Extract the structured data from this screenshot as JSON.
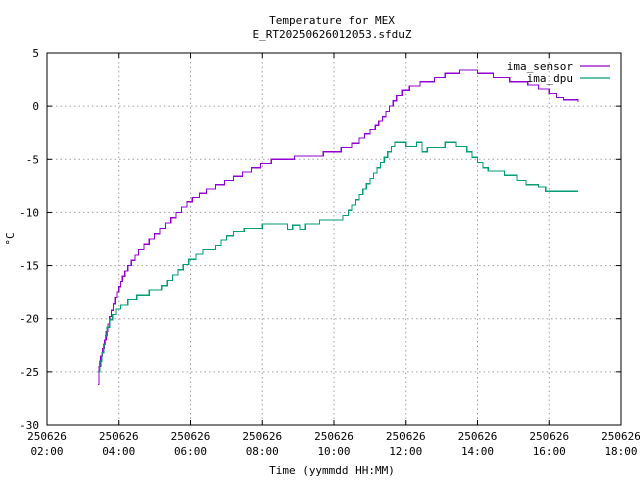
{
  "chart_data": {
    "type": "line",
    "title": "Temperature for MEX",
    "subtitle": "E_RT20250626012053.sfduZ",
    "xlabel": "Time (yymmdd HH:MM)",
    "ylabel": "°C",
    "xlim": [
      2.0,
      18.0
    ],
    "ylim": [
      -30,
      5
    ],
    "x_ticks": [
      {
        "value": 2,
        "date": "250626",
        "time": "02:00"
      },
      {
        "value": 4,
        "date": "250626",
        "time": "04:00"
      },
      {
        "value": 6,
        "date": "250626",
        "time": "06:00"
      },
      {
        "value": 8,
        "date": "250626",
        "time": "08:00"
      },
      {
        "value": 10,
        "date": "250626",
        "time": "10:00"
      },
      {
        "value": 12,
        "date": "250626",
        "time": "12:00"
      },
      {
        "value": 14,
        "date": "250626",
        "time": "14:00"
      },
      {
        "value": 16,
        "date": "250626",
        "time": "16:00"
      },
      {
        "value": 18,
        "date": "250626",
        "time": "18:00"
      }
    ],
    "y_ticks": [
      5,
      0,
      -5,
      -10,
      -15,
      -20,
      -25,
      -30
    ],
    "grid": true,
    "legend_position": "top-right",
    "series": [
      {
        "name": "ima_sensor",
        "color": "#9400d3",
        "points": [
          [
            3.42,
            -26.2
          ],
          [
            3.45,
            -24.5
          ],
          [
            3.5,
            -23.5
          ],
          [
            3.55,
            -22.8
          ],
          [
            3.6,
            -22.0
          ],
          [
            3.65,
            -21.2
          ],
          [
            3.7,
            -20.5
          ],
          [
            3.75,
            -19.8
          ],
          [
            3.8,
            -19.2
          ],
          [
            3.85,
            -18.6
          ],
          [
            3.9,
            -18.0
          ],
          [
            3.95,
            -17.5
          ],
          [
            4.0,
            -17.0
          ],
          [
            4.05,
            -16.5
          ],
          [
            4.1,
            -16.0
          ],
          [
            4.17,
            -15.5
          ],
          [
            4.25,
            -15.0
          ],
          [
            4.35,
            -14.5
          ],
          [
            4.45,
            -14.0
          ],
          [
            4.55,
            -13.5
          ],
          [
            4.7,
            -13.0
          ],
          [
            4.85,
            -12.5
          ],
          [
            5.0,
            -12.0
          ],
          [
            5.15,
            -11.5
          ],
          [
            5.3,
            -11.0
          ],
          [
            5.45,
            -10.5
          ],
          [
            5.6,
            -10.0
          ],
          [
            5.75,
            -9.5
          ],
          [
            5.9,
            -9.0
          ],
          [
            6.05,
            -8.6
          ],
          [
            6.25,
            -8.2
          ],
          [
            6.45,
            -7.8
          ],
          [
            6.7,
            -7.4
          ],
          [
            6.95,
            -7.0
          ],
          [
            7.2,
            -6.6
          ],
          [
            7.45,
            -6.2
          ],
          [
            7.7,
            -5.8
          ],
          [
            7.95,
            -5.4
          ],
          [
            8.25,
            -5.0
          ],
          [
            8.9,
            -4.7
          ],
          [
            9.7,
            -4.3
          ],
          [
            10.2,
            -3.9
          ],
          [
            10.5,
            -3.5
          ],
          [
            10.7,
            -3.0
          ],
          [
            10.85,
            -2.6
          ],
          [
            11.0,
            -2.2
          ],
          [
            11.15,
            -1.8
          ],
          [
            11.25,
            -1.4
          ],
          [
            11.35,
            -1.0
          ],
          [
            11.45,
            -0.5
          ],
          [
            11.55,
            0.0
          ],
          [
            11.65,
            0.5
          ],
          [
            11.75,
            1.0
          ],
          [
            11.9,
            1.5
          ],
          [
            12.1,
            1.9
          ],
          [
            12.4,
            2.3
          ],
          [
            12.8,
            2.7
          ],
          [
            13.1,
            3.1
          ],
          [
            13.5,
            3.4
          ],
          [
            14.0,
            3.1
          ],
          [
            14.45,
            2.7
          ],
          [
            14.9,
            2.3
          ],
          [
            15.4,
            2.0
          ],
          [
            15.7,
            1.6
          ],
          [
            16.0,
            1.2
          ],
          [
            16.2,
            0.8
          ],
          [
            16.4,
            0.6
          ],
          [
            16.8,
            0.4
          ]
        ]
      },
      {
        "name": "ima_dpu",
        "color": "#009e73",
        "points": [
          [
            3.42,
            -25.0
          ],
          [
            3.47,
            -24.0
          ],
          [
            3.53,
            -23.2
          ],
          [
            3.58,
            -22.4
          ],
          [
            3.63,
            -21.6
          ],
          [
            3.68,
            -20.8
          ],
          [
            3.75,
            -20.1
          ],
          [
            3.83,
            -19.6
          ],
          [
            3.92,
            -19.1
          ],
          [
            4.05,
            -18.7
          ],
          [
            4.25,
            -18.2
          ],
          [
            4.5,
            -17.8
          ],
          [
            4.85,
            -17.3
          ],
          [
            5.2,
            -16.9
          ],
          [
            5.35,
            -16.4
          ],
          [
            5.5,
            -15.9
          ],
          [
            5.65,
            -15.4
          ],
          [
            5.8,
            -14.9
          ],
          [
            5.95,
            -14.4
          ],
          [
            6.15,
            -13.9
          ],
          [
            6.35,
            -13.5
          ],
          [
            6.7,
            -13.1
          ],
          [
            6.85,
            -12.6
          ],
          [
            7.0,
            -12.2
          ],
          [
            7.2,
            -11.8
          ],
          [
            7.5,
            -11.5
          ],
          [
            8.0,
            -11.1
          ],
          [
            8.7,
            -11.6
          ],
          [
            8.85,
            -11.2
          ],
          [
            9.05,
            -11.6
          ],
          [
            9.2,
            -11.1
          ],
          [
            9.6,
            -10.7
          ],
          [
            10.25,
            -10.3
          ],
          [
            10.4,
            -9.8
          ],
          [
            10.5,
            -9.3
          ],
          [
            10.6,
            -8.8
          ],
          [
            10.7,
            -8.3
          ],
          [
            10.8,
            -7.8
          ],
          [
            10.9,
            -7.3
          ],
          [
            11.0,
            -6.8
          ],
          [
            11.1,
            -6.3
          ],
          [
            11.2,
            -5.8
          ],
          [
            11.3,
            -5.3
          ],
          [
            11.4,
            -4.8
          ],
          [
            11.5,
            -4.3
          ],
          [
            11.6,
            -3.8
          ],
          [
            11.7,
            -3.4
          ],
          [
            12.0,
            -3.8
          ],
          [
            12.3,
            -3.4
          ],
          [
            12.45,
            -4.3
          ],
          [
            12.6,
            -3.9
          ],
          [
            12.95,
            -3.9
          ],
          [
            13.1,
            -3.4
          ],
          [
            13.4,
            -3.8
          ],
          [
            13.7,
            -4.3
          ],
          [
            13.85,
            -4.8
          ],
          [
            14.0,
            -5.3
          ],
          [
            14.15,
            -5.8
          ],
          [
            14.3,
            -6.1
          ],
          [
            14.75,
            -6.5
          ],
          [
            15.1,
            -7.0
          ],
          [
            15.35,
            -7.4
          ],
          [
            15.7,
            -7.6
          ],
          [
            15.9,
            -8.0
          ],
          [
            16.8,
            -8.0
          ]
        ]
      }
    ]
  }
}
